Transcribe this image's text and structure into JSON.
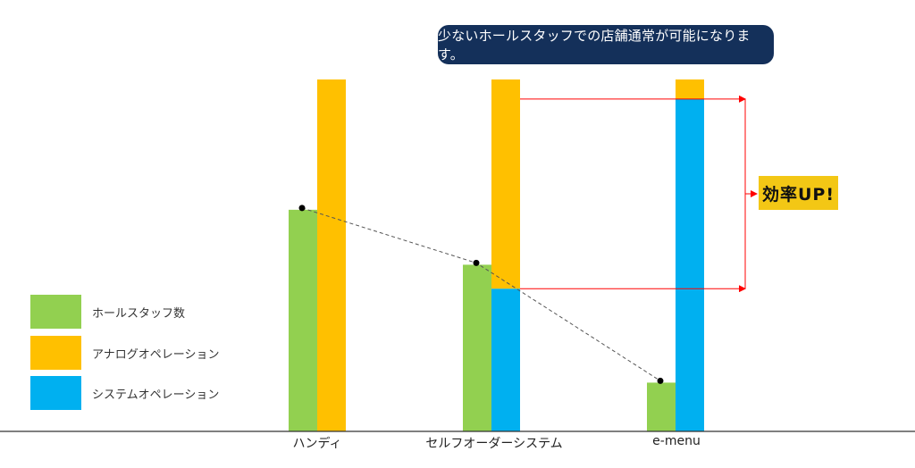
{
  "chart_data": {
    "type": "bar",
    "categories": [
      "ハンディ",
      "セルフオーダーシステム",
      "e-menu"
    ],
    "series": [
      {
        "name": "ホールスタッフ数",
        "color": "#92d050",
        "values": [
          250,
          188,
          55
        ]
      },
      {
        "name": "アナログオペレーション",
        "color": "#ffc000",
        "stacked_with": "システムオペレーション",
        "values": [
          397,
          236,
          22
        ]
      },
      {
        "name": "システムオペレーション",
        "color": "#00b0f0",
        "values": [
          0,
          161,
          375
        ]
      }
    ],
    "ylim": [
      0,
      400
    ],
    "grid": false,
    "legend_position": "bottom-left",
    "trend_line": {
      "series": "ホールスタッフ数",
      "style": "dashed"
    },
    "annotations": {
      "callout": "少ないホールスタッフでの店舗通常が可能になります。",
      "badge": "効率UP!",
      "arrow_color": "#ff0000",
      "callout_color": "#14305a",
      "badge_color": "#f3c715"
    }
  }
}
